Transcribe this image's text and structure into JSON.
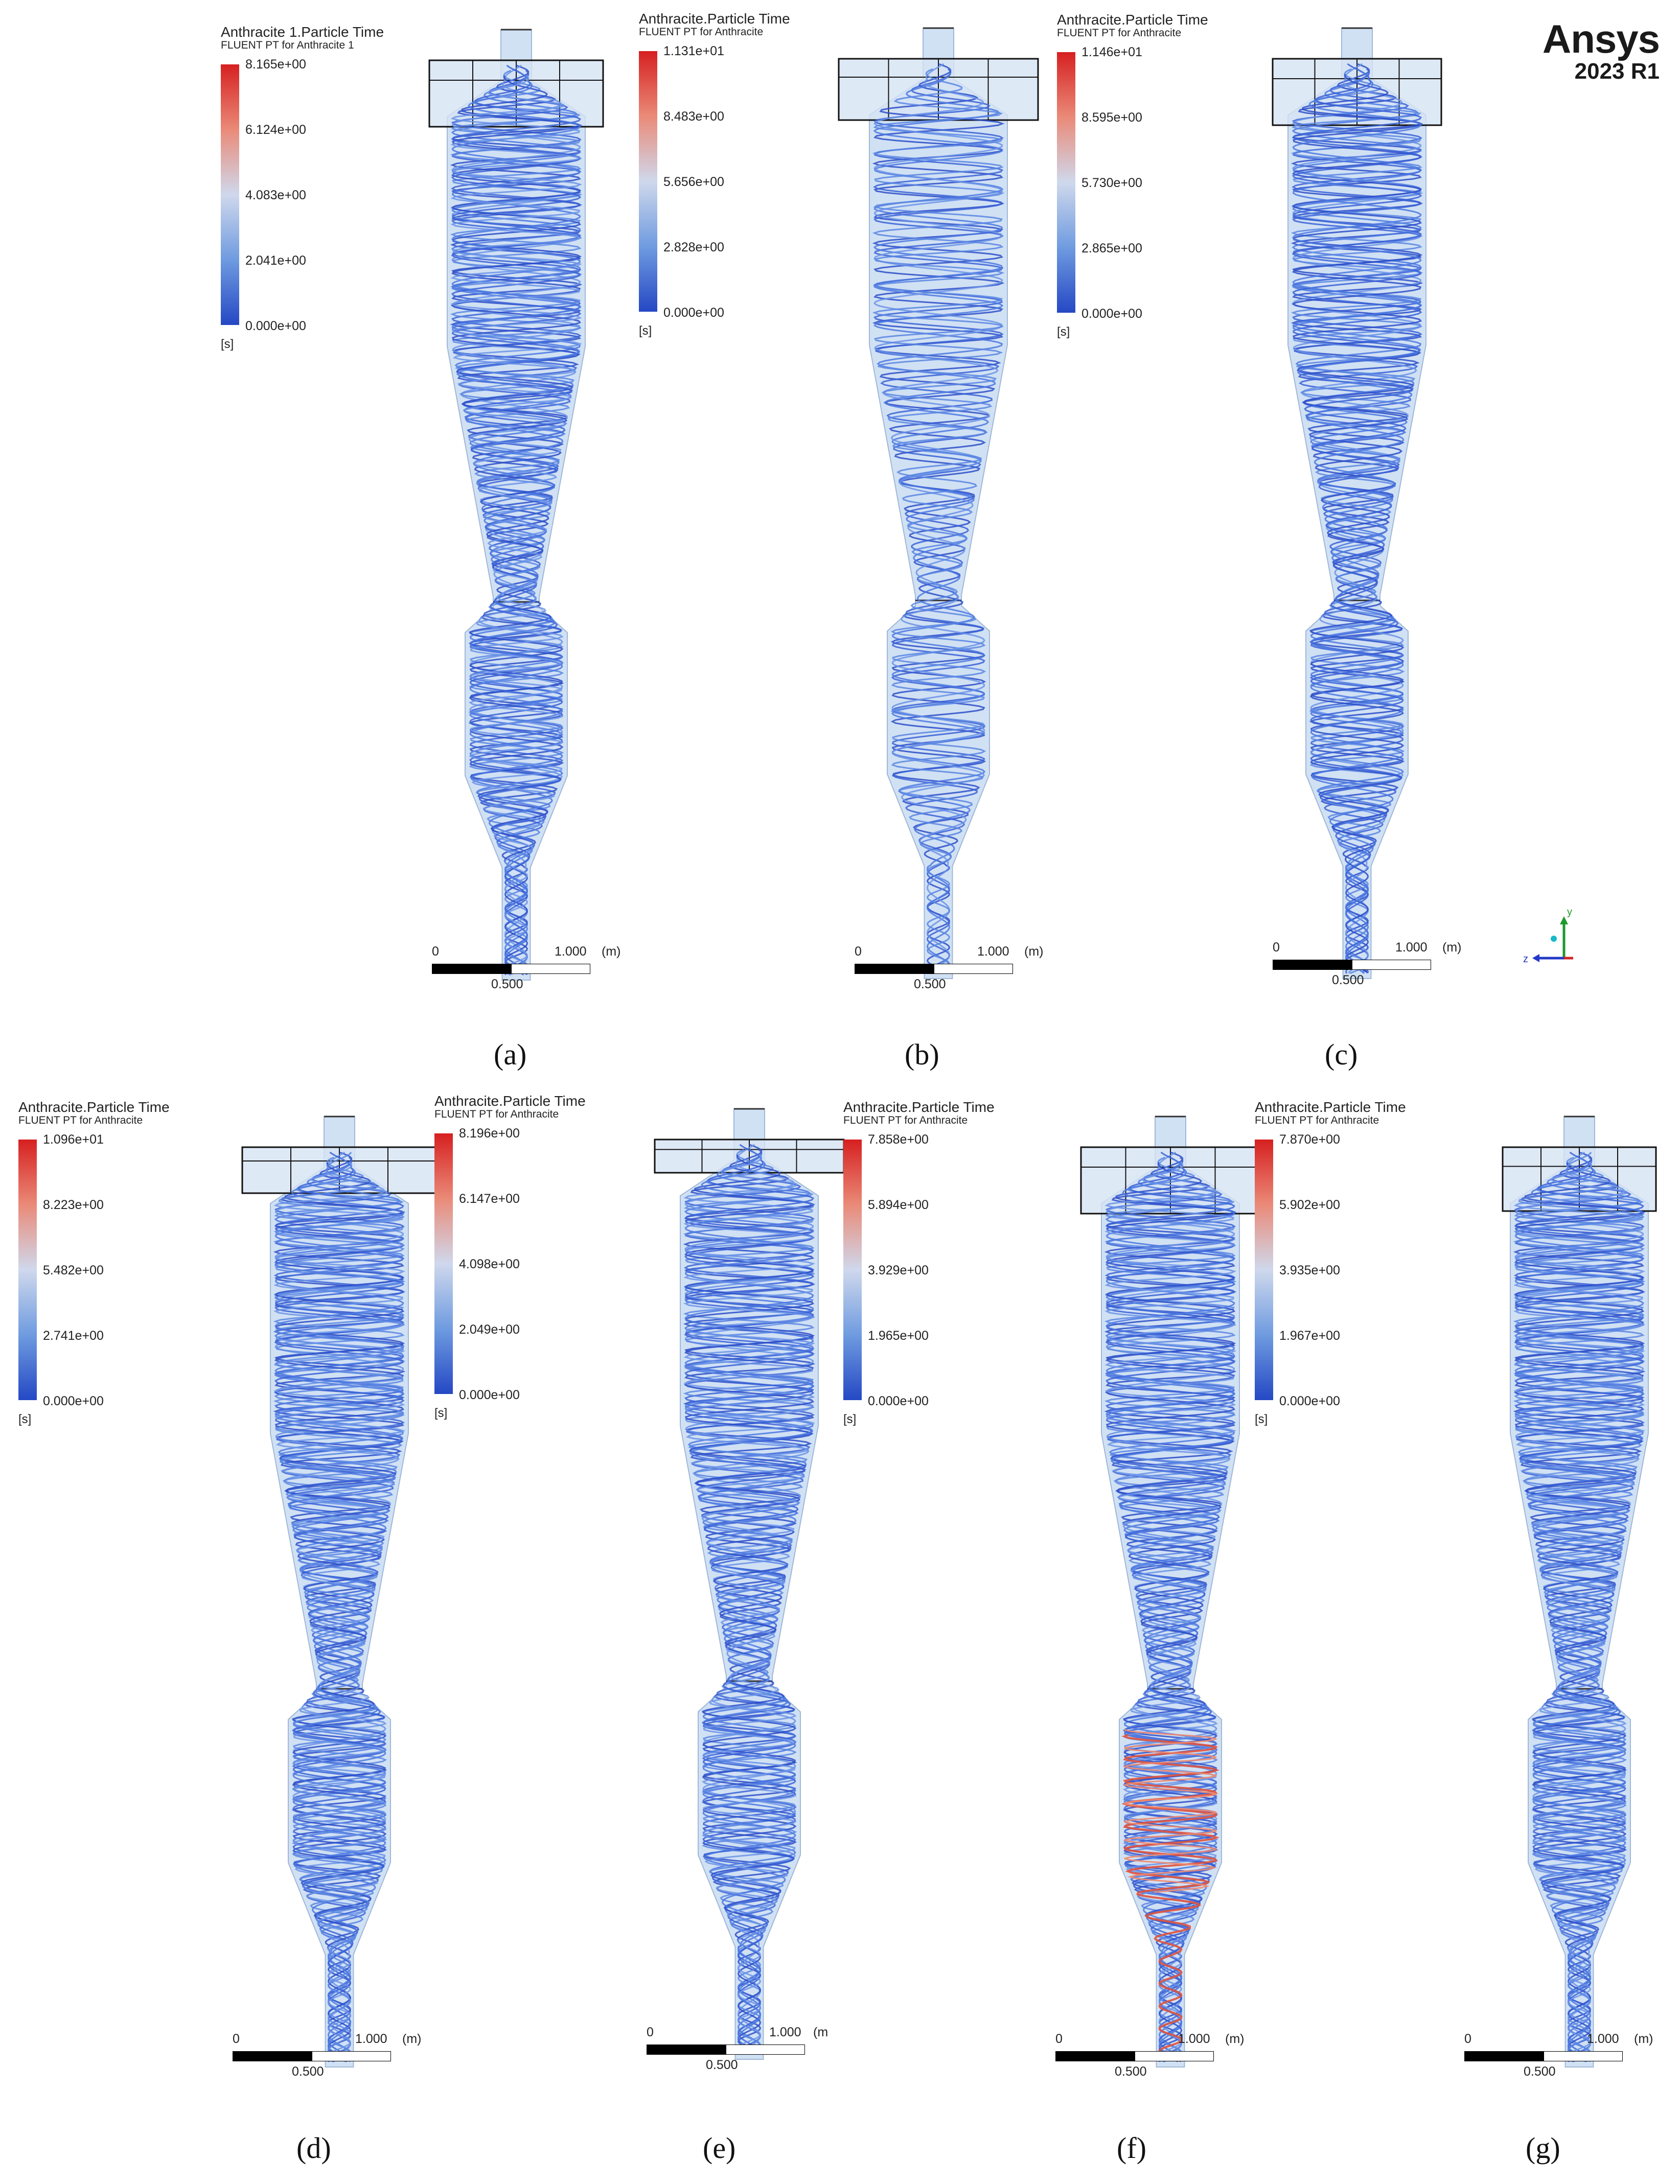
{
  "brand": {
    "name": "Ansys",
    "version": "2023 R1"
  },
  "panels": [
    {
      "caption": "(a)",
      "legend": {
        "title": "Anthracite 1.Particle Time",
        "subtitle": "FLUENT PT for Anthracite 1",
        "ticks": [
          "8.165e+00",
          "6.124e+00",
          "4.083e+00",
          "2.041e+00",
          "0.000e+00"
        ],
        "unit": "[s]"
      }
    },
    {
      "caption": "(b)",
      "legend": {
        "title": "Anthracite.Particle Time",
        "subtitle": "FLUENT PT for Anthracite",
        "ticks": [
          "1.131e+01",
          "8.483e+00",
          "5.656e+00",
          "2.828e+00",
          "0.000e+00"
        ],
        "unit": "[s]"
      }
    },
    {
      "caption": "(c)",
      "legend": {
        "title": "Anthracite.Particle Time",
        "subtitle": "FLUENT PT for Anthracite",
        "ticks": [
          "1.146e+01",
          "8.595e+00",
          "5.730e+00",
          "2.865e+00",
          "0.000e+00"
        ],
        "unit": "[s]"
      }
    },
    {
      "caption": "(d)",
      "legend": {
        "title": "Anthracite.Particle Time",
        "subtitle": "FLUENT PT for Anthracite",
        "ticks": [
          "1.096e+01",
          "8.223e+00",
          "5.482e+00",
          "2.741e+00",
          "0.000e+00"
        ],
        "unit": "[s]"
      }
    },
    {
      "caption": "(e)",
      "legend": {
        "title": "Anthracite.Particle Time",
        "subtitle": "FLUENT PT for Anthracite",
        "ticks": [
          "8.196e+00",
          "6.147e+00",
          "4.098e+00",
          "2.049e+00",
          "0.000e+00"
        ],
        "unit": "[s]"
      }
    },
    {
      "caption": "(f)",
      "legend": {
        "title": "Anthracite.Particle Time",
        "subtitle": "FLUENT PT for Anthracite",
        "ticks": [
          "7.858e+00",
          "5.894e+00",
          "3.929e+00",
          "1.965e+00",
          "0.000e+00"
        ],
        "unit": "[s]"
      }
    },
    {
      "caption": "(g)",
      "legend": {
        "title": "Anthracite.Particle Time",
        "subtitle": "FLUENT PT for Anthracite",
        "ticks": [
          "7.870e+00",
          "5.902e+00",
          "3.935e+00",
          "1.967e+00",
          "0.000e+00"
        ],
        "unit": "[s]"
      }
    }
  ],
  "scale": {
    "zero": "0",
    "end": "1.000",
    "unit": "(m)",
    "unit_cut": "(m",
    "mid": "0.500"
  },
  "axis": {
    "y": "y",
    "z": "z"
  }
}
